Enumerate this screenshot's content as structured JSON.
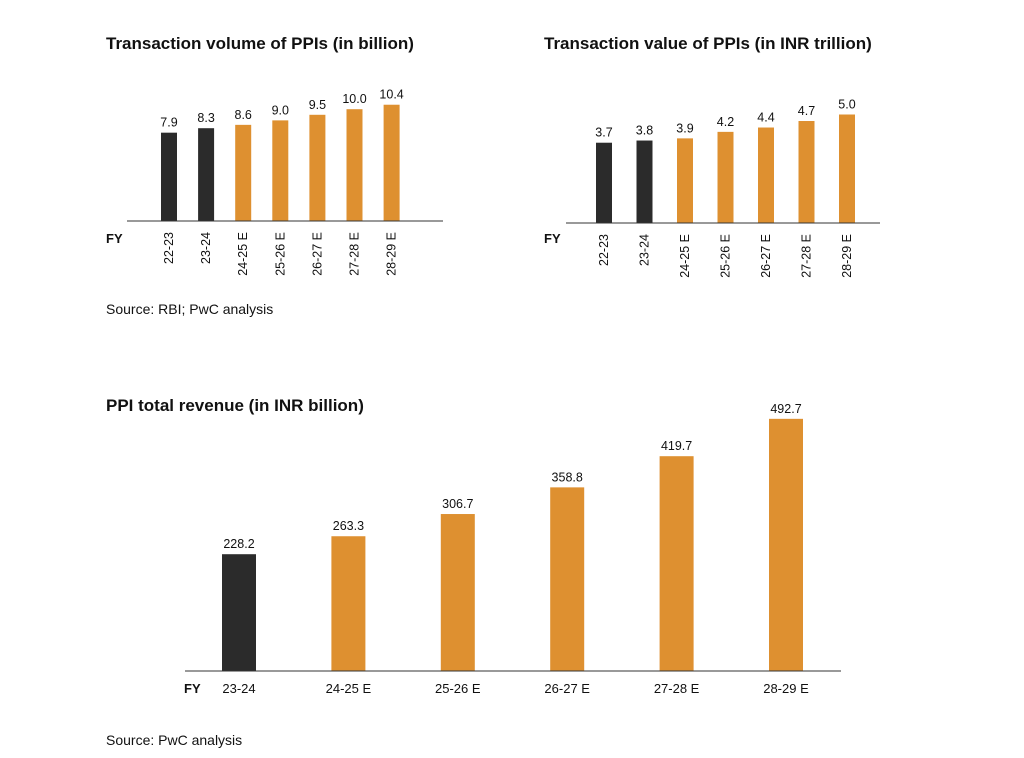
{
  "colors": {
    "actual": "#2b2b2b",
    "estimate": "#de9030",
    "axis": "#333333"
  },
  "sources": {
    "top": "Source: RBI; PwC analysis",
    "bottom": "Source: PwC analysis"
  },
  "chart_data": [
    {
      "type": "bar",
      "title": "Transaction volume of PPIs (in billion)",
      "xlabel": "FY",
      "categories": [
        "22-23",
        "23-24",
        "24-25 E",
        "25-26 E",
        "26-27 E",
        "27-28 E",
        "28-29 E"
      ],
      "values": [
        7.9,
        8.3,
        8.6,
        9.0,
        9.5,
        10.0,
        10.4
      ],
      "value_labels": [
        "7.9",
        "8.3",
        "8.6",
        "9.0",
        "9.5",
        "10.0",
        "10.4"
      ],
      "estimate_flags": [
        false,
        false,
        true,
        true,
        true,
        true,
        true
      ]
    },
    {
      "type": "bar",
      "title": "Transaction value of PPIs (in INR trillion)",
      "xlabel": "FY",
      "categories": [
        "22-23",
        "23-24",
        "24-25 E",
        "25-26 E",
        "26-27 E",
        "27-28 E",
        "28-29 E"
      ],
      "values": [
        3.7,
        3.8,
        3.9,
        4.2,
        4.4,
        4.7,
        5.0
      ],
      "value_labels": [
        "3.7",
        "3.8",
        "3.9",
        "4.2",
        "4.4",
        "4.7",
        "5.0"
      ],
      "estimate_flags": [
        false,
        false,
        true,
        true,
        true,
        true,
        true
      ]
    },
    {
      "type": "bar",
      "title": "PPI total revenue (in INR billion)",
      "xlabel": "FY",
      "categories": [
        "23-24",
        "24-25 E",
        "25-26 E",
        "26-27 E",
        "27-28 E",
        "28-29 E"
      ],
      "values": [
        228.2,
        263.3,
        306.7,
        358.8,
        419.7,
        492.7
      ],
      "value_labels": [
        "228.2",
        "263.3",
        "306.7",
        "358.8",
        "419.7",
        "492.7"
      ],
      "estimate_flags": [
        false,
        true,
        true,
        true,
        true,
        true
      ]
    }
  ]
}
